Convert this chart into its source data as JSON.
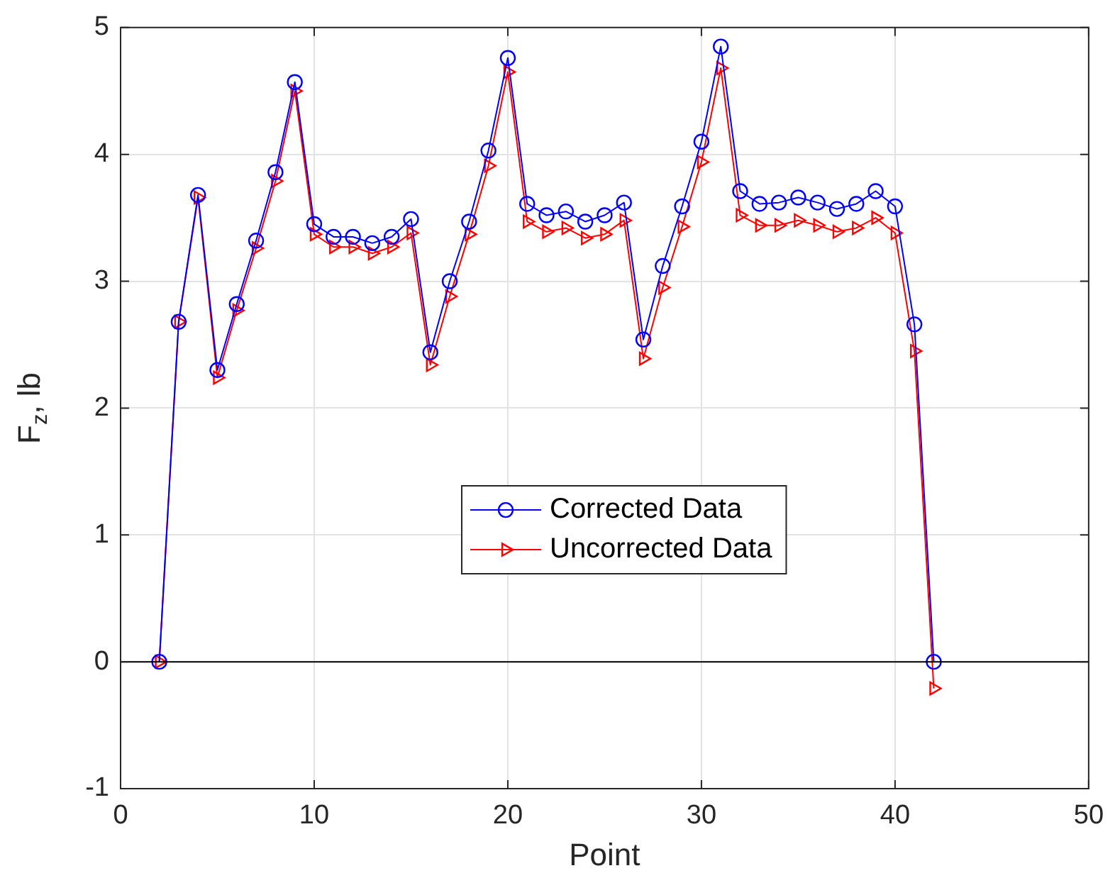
{
  "chart_data": {
    "type": "line",
    "xlabel": "Point",
    "ylabel": "F$_{z}$, lb",
    "x": [
      2,
      3,
      4,
      5,
      6,
      7,
      8,
      9,
      10,
      11,
      12,
      13,
      14,
      15,
      16,
      17,
      18,
      19,
      20,
      21,
      22,
      23,
      24,
      25,
      26,
      27,
      28,
      29,
      30,
      31,
      32,
      33,
      34,
      35,
      36,
      37,
      38,
      39,
      40,
      41,
      42
    ],
    "series": [
      {
        "name": "Corrected Data",
        "color": "#0000ff",
        "marker": "circle",
        "values": [
          0,
          2.68,
          3.68,
          2.3,
          2.82,
          3.32,
          3.86,
          4.57,
          3.45,
          3.35,
          3.35,
          3.3,
          3.35,
          3.49,
          2.44,
          3.0,
          3.47,
          4.03,
          4.76,
          3.61,
          3.52,
          3.55,
          3.47,
          3.52,
          3.62,
          2.54,
          3.12,
          3.59,
          4.1,
          4.85,
          3.71,
          3.61,
          3.62,
          3.66,
          3.62,
          3.57,
          3.61,
          3.71,
          3.59,
          2.66,
          0
        ]
      },
      {
        "name": "Uncorrected Data",
        "color": "#ff0000",
        "marker": "triangle",
        "values": [
          0,
          2.68,
          3.66,
          2.24,
          2.77,
          3.26,
          3.79,
          4.5,
          3.37,
          3.27,
          3.27,
          3.22,
          3.27,
          3.38,
          2.34,
          2.88,
          3.37,
          3.91,
          4.65,
          3.47,
          3.39,
          3.42,
          3.34,
          3.37,
          3.48,
          2.39,
          2.95,
          3.43,
          3.94,
          4.68,
          3.52,
          3.44,
          3.44,
          3.48,
          3.44,
          3.39,
          3.42,
          3.5,
          3.38,
          2.45,
          -0.21
        ]
      }
    ],
    "xlim": [
      0,
      50
    ],
    "xticks": [
      0,
      10,
      20,
      30,
      40,
      50
    ],
    "ylim": [
      -1,
      5
    ],
    "yticks": [
      -1,
      0,
      1,
      2,
      3,
      4,
      5
    ],
    "ref_lines": [
      {
        "axis": "y",
        "value": 0,
        "color": "#000000"
      }
    ],
    "grid": true,
    "legend": "center",
    "line_style": "solid"
  }
}
